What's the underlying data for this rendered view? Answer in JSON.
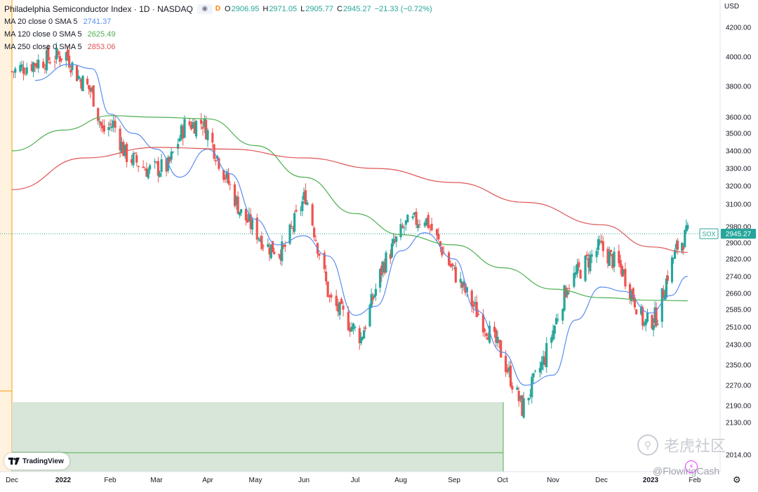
{
  "header": {
    "title": "Philadelphia Semiconductor Index · 1D · NASDAQ",
    "interval_badge": "D",
    "ohlc": {
      "o_label": "O",
      "o": "2906.95",
      "h_label": "H",
      "h": "2971.05",
      "l_label": "L",
      "l": "2905.77",
      "c_label": "C",
      "c": "2945.27",
      "change": "−21.33 (−0.72%)"
    }
  },
  "moving_averages": [
    {
      "label": "MA 20 close 0 SMA 5",
      "value": "2741.37",
      "color": "#5b8def"
    },
    {
      "label": "MA 120 close 0 SMA 5",
      "value": "2625.49",
      "color": "#4caf50"
    },
    {
      "label": "MA 250 close 0 SMA 5",
      "value": "2853.06",
      "color": "#e05555"
    }
  ],
  "price_axis": {
    "currency": "USD",
    "ticks": [
      "4200.00",
      "4000.00",
      "3800.00",
      "3600.00",
      "3500.00",
      "3400.00",
      "3300.00",
      "3200.00",
      "3100.00",
      "2980.00",
      "2900.00",
      "2820.00",
      "2740.00",
      "2660.00",
      "2585.00",
      "2510.00",
      "2430.00",
      "2350.00",
      "2270.00",
      "2190.00",
      "2130.00",
      "2014.00"
    ]
  },
  "last_price": {
    "symbol": "SOX",
    "value": "2945.27",
    "color": "#26a69a"
  },
  "time_axis": {
    "ticks": [
      "Dec",
      "2022",
      "Feb",
      "Mar",
      "Apr",
      "May",
      "Jun",
      "Jul",
      "Aug",
      "Sep",
      "Oct",
      "Nov",
      "Dec",
      "2023",
      "Feb"
    ]
  },
  "branding": {
    "logo_text": "TradingView",
    "watermark_text": "老虎社区",
    "watermark_user": "@FlowingCash"
  },
  "colors": {
    "up": "#26a69a",
    "down": "#ef5350",
    "ma20": "#5b8def",
    "ma120": "#4caf50",
    "ma250": "#e05555"
  },
  "chart_data": {
    "type": "candlestick",
    "title": "Philadelphia Semiconductor Index",
    "x_range": [
      "2021-12",
      "2023-01"
    ],
    "ylim": [
      2014,
      4200
    ],
    "scale": "log",
    "grid": false,
    "series": [
      {
        "name": "MA 20 close 0 SMA 5",
        "points": [
          [
            "2021-12-15",
            3840
          ],
          [
            "2022-01-05",
            3950
          ],
          [
            "2022-01-20",
            3920
          ],
          [
            "2022-02-01",
            3620
          ],
          [
            "2022-02-15",
            3500
          ],
          [
            "2022-03-01",
            3410
          ],
          [
            "2022-03-15",
            3250
          ],
          [
            "2022-04-01",
            3410
          ],
          [
            "2022-04-15",
            3270
          ],
          [
            "2022-05-01",
            3020
          ],
          [
            "2022-05-15",
            2890
          ],
          [
            "2022-06-01",
            2935
          ],
          [
            "2022-06-15",
            2835
          ],
          [
            "2022-07-01",
            2560
          ],
          [
            "2022-07-15",
            2600
          ],
          [
            "2022-08-01",
            2860
          ],
          [
            "2022-08-15",
            2950
          ],
          [
            "2022-09-01",
            2820
          ],
          [
            "2022-09-15",
            2580
          ],
          [
            "2022-10-01",
            2400
          ],
          [
            "2022-10-15",
            2270
          ],
          [
            "2022-11-01",
            2310
          ],
          [
            "2022-11-15",
            2540
          ],
          [
            "2022-12-01",
            2690
          ],
          [
            "2022-12-15",
            2670
          ],
          [
            "2023-01-01",
            2570
          ],
          [
            "2023-01-15",
            2650
          ],
          [
            "2023-01-27",
            2741.37
          ]
        ]
      },
      {
        "name": "MA 120 close 0 SMA 5",
        "points": [
          [
            "2021-12-01",
            3400
          ],
          [
            "2022-01-01",
            3520
          ],
          [
            "2022-02-01",
            3610
          ],
          [
            "2022-03-01",
            3600
          ],
          [
            "2022-04-01",
            3590
          ],
          [
            "2022-05-01",
            3430
          ],
          [
            "2022-06-01",
            3250
          ],
          [
            "2022-07-01",
            3050
          ],
          [
            "2022-08-01",
            2940
          ],
          [
            "2022-09-01",
            2890
          ],
          [
            "2022-10-01",
            2780
          ],
          [
            "2022-11-01",
            2680
          ],
          [
            "2022-12-01",
            2640
          ],
          [
            "2023-01-01",
            2628
          ],
          [
            "2023-01-27",
            2625.49
          ]
        ]
      },
      {
        "name": "MA 250 close 0 SMA 5",
        "points": [
          [
            "2021-12-01",
            3180
          ],
          [
            "2022-01-15",
            3360
          ],
          [
            "2022-03-01",
            3420
          ],
          [
            "2022-04-15",
            3410
          ],
          [
            "2022-06-01",
            3360
          ],
          [
            "2022-07-15",
            3300
          ],
          [
            "2022-09-01",
            3220
          ],
          [
            "2022-10-15",
            3110
          ],
          [
            "2022-12-01",
            2990
          ],
          [
            "2023-01-01",
            2880
          ],
          [
            "2023-01-27",
            2853.06
          ]
        ]
      },
      {
        "name": "SOX",
        "ohlc_daily_approx_close": [
          [
            "2021-12-01",
            3900
          ],
          [
            "2021-12-15",
            3960
          ],
          [
            "2022-01-03",
            4020
          ],
          [
            "2022-01-10",
            3880
          ],
          [
            "2022-01-20",
            3760
          ],
          [
            "2022-01-27",
            3510
          ],
          [
            "2022-02-03",
            3560
          ],
          [
            "2022-02-10",
            3380
          ],
          [
            "2022-02-24",
            3290
          ],
          [
            "2022-03-08",
            3310
          ],
          [
            "2022-03-18",
            3550
          ],
          [
            "2022-03-29",
            3570
          ],
          [
            "2022-04-11",
            3280
          ],
          [
            "2022-04-22",
            3050
          ],
          [
            "2022-05-09",
            2880
          ],
          [
            "2022-05-19",
            2860
          ],
          [
            "2022-06-02",
            3150
          ],
          [
            "2022-06-16",
            2630
          ],
          [
            "2022-07-05",
            2460
          ],
          [
            "2022-07-20",
            2790
          ],
          [
            "2022-08-04",
            2990
          ],
          [
            "2022-08-15",
            3030
          ],
          [
            "2022-08-29",
            2800
          ],
          [
            "2022-09-13",
            2600
          ],
          [
            "2022-09-30",
            2400
          ],
          [
            "2022-10-13",
            2180
          ],
          [
            "2022-10-27",
            2380
          ],
          [
            "2022-11-10",
            2700
          ],
          [
            "2022-11-30",
            2880
          ],
          [
            "2022-12-14",
            2770
          ],
          [
            "2022-12-28",
            2520
          ],
          [
            "2023-01-06",
            2560
          ],
          [
            "2023-01-13",
            2750
          ],
          [
            "2023-01-20",
            2880
          ],
          [
            "2023-01-27",
            2945.27
          ]
        ]
      }
    ]
  }
}
